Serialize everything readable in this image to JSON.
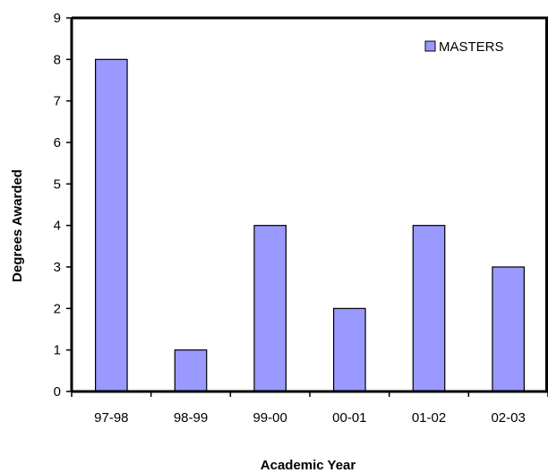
{
  "chart_data": {
    "type": "bar",
    "categories": [
      "97-98",
      "98-99",
      "99-00",
      "00-01",
      "01-02",
      "02-03"
    ],
    "series": [
      {
        "name": "MASTERS",
        "values": [
          8,
          1,
          4,
          2,
          4,
          3
        ]
      }
    ],
    "title": "",
    "xlabel": "Academic Year",
    "ylabel": "Degrees Awarded",
    "ylim": [
      0,
      9
    ],
    "yticks": [
      0,
      1,
      2,
      3,
      4,
      5,
      6,
      7,
      8,
      9
    ],
    "grid": false,
    "legend": "top-right",
    "colors": {
      "bar_fill": "#9999FF",
      "bar_stroke": "#000000",
      "axis": "#000000"
    }
  }
}
